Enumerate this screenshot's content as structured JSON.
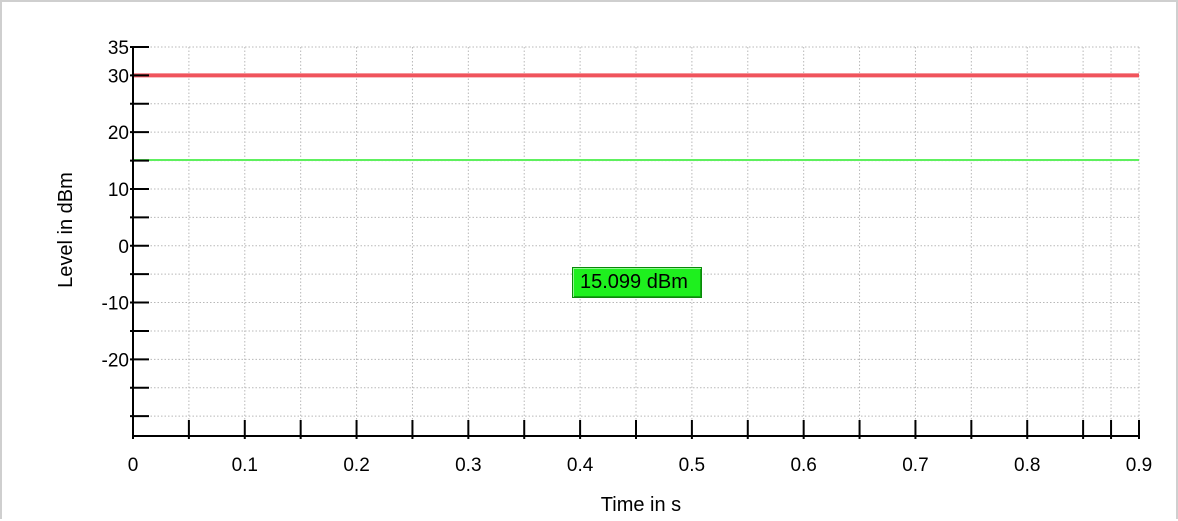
{
  "chart_data": {
    "type": "line",
    "title": "",
    "xlabel": "Time in s",
    "ylabel": "Level in dBm",
    "xlim": [
      0,
      0.9
    ],
    "ylim": [
      -33.5,
      35
    ],
    "x_ticks": [
      0,
      0.1,
      0.2,
      0.3,
      0.4,
      0.5,
      0.6,
      0.7,
      0.8,
      0.9
    ],
    "x_tick_labels": [
      "0",
      "0.1",
      "0.2",
      "0.3",
      "0.4",
      "0.5",
      "0.6",
      "0.7",
      "0.8",
      "0.9"
    ],
    "x_minor_ticks": [
      0.05,
      0.15,
      0.25,
      0.35,
      0.45,
      0.55,
      0.65,
      0.75,
      0.85,
      0.875
    ],
    "y_ticks": [
      35,
      30,
      20,
      10,
      0,
      -10,
      -20
    ],
    "y_tick_labels": [
      "35",
      "30",
      "20",
      "10",
      "0",
      "-10",
      "-20"
    ],
    "y_minor_ticks": [
      25,
      15,
      5,
      -5,
      -15,
      -25,
      -30
    ],
    "grid": true,
    "series": [
      {
        "color": "#f0545c",
        "x": [
          0,
          0.9
        ],
        "y": [
          30,
          30
        ],
        "width": 4
      },
      {
        "color": "#5ef05e",
        "x": [
          0,
          0.9
        ],
        "y": [
          15.099,
          15.099
        ],
        "width": 2
      }
    ],
    "annotations": [
      {
        "text": "15.099 dBm",
        "color": "#1ef01e"
      }
    ]
  }
}
